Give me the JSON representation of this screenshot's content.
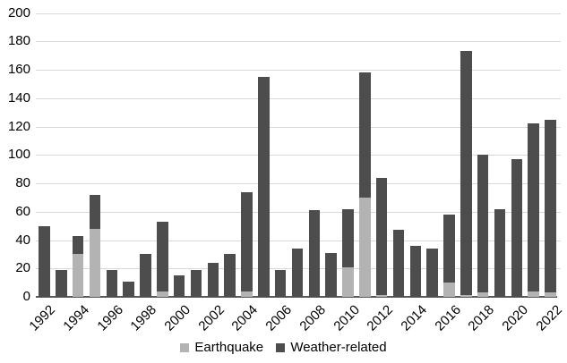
{
  "chart_data": {
    "type": "bar",
    "stacked": true,
    "title": "",
    "xlabel": "",
    "ylabel": "",
    "ylim": [
      0,
      200
    ],
    "yticks": [
      0,
      20,
      40,
      60,
      80,
      100,
      120,
      140,
      160,
      180,
      200
    ],
    "grid": true,
    "legend_position": "bottom",
    "categories": [
      "1992",
      "1993",
      "1994",
      "1995",
      "1996",
      "1997",
      "1998",
      "1999",
      "2000",
      "2001",
      "2002",
      "2003",
      "2004",
      "2005",
      "2006",
      "2007",
      "2008",
      "2009",
      "2010",
      "2011",
      "2012",
      "2013",
      "2014",
      "2015",
      "2016",
      "2017",
      "2018",
      "2019",
      "2020",
      "2021",
      "2022"
    ],
    "xtick_labels": [
      "1992",
      "1994",
      "1996",
      "1998",
      "2000",
      "2002",
      "2004",
      "2006",
      "2008",
      "2010",
      "2012",
      "2014",
      "2016",
      "2018",
      "2020",
      "2022"
    ],
    "series": [
      {
        "name": "Earthquake",
        "color": "#b3b3b3",
        "values": [
          0,
          0,
          30,
          48,
          0,
          0,
          0,
          4,
          0,
          0,
          0,
          0,
          4,
          0,
          0,
          0,
          0,
          0,
          21,
          70,
          1,
          0,
          0,
          0,
          10,
          1,
          3,
          0,
          0,
          4,
          3
        ]
      },
      {
        "name": "Weather-related",
        "color": "#4d4d4d",
        "values": [
          50,
          19,
          13,
          24,
          19,
          11,
          30,
          49,
          15,
          19,
          24,
          30,
          70,
          155,
          19,
          34,
          61,
          31,
          41,
          88,
          83,
          47,
          36,
          34,
          48,
          172,
          97,
          62,
          97,
          118,
          122
        ]
      }
    ]
  },
  "legend": {
    "items": [
      {
        "label": "Earthquake",
        "color": "#b3b3b3"
      },
      {
        "label": "Weather-related",
        "color": "#4d4d4d"
      }
    ]
  }
}
